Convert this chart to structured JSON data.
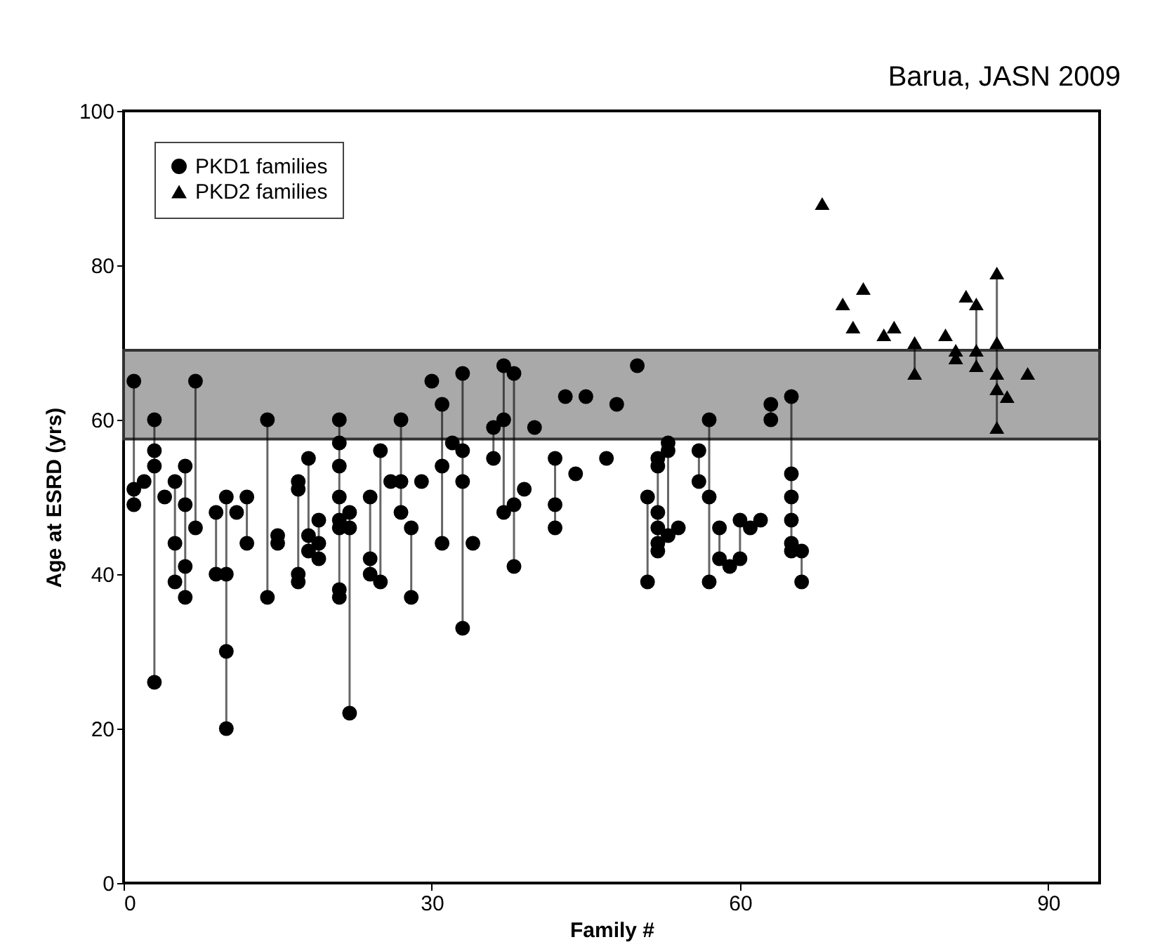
{
  "chart_data": {
    "type": "line",
    "xlabel": "Family #",
    "ylabel": "Age at ESRD (yrs)",
    "annotations": [
      "Barua, JASN 2009"
    ],
    "xlim": [
      0,
      95
    ],
    "xticks": [
      0,
      30,
      60,
      90
    ],
    "ylim": [
      0,
      100
    ],
    "yticks": [
      0,
      20,
      40,
      60,
      80,
      100
    ],
    "grid": false,
    "legend": "top left",
    "bands": [
      {
        "axis": "y",
        "from": 57.5,
        "to": 69,
        "color": "#a9a9a9"
      }
    ],
    "series": [
      {
        "name": "PKD1 families",
        "color": "#000000",
        "marker": "circle",
        "x": [
          1,
          1,
          1,
          null,
          2,
          null,
          3,
          3,
          3,
          3,
          null,
          4,
          null,
          5,
          5,
          5,
          null,
          6,
          6,
          6,
          6,
          null,
          7,
          7,
          null,
          9,
          9,
          null,
          10,
          10,
          10,
          10,
          null,
          11,
          null,
          12,
          12,
          null,
          14,
          14,
          null,
          15,
          15,
          null,
          17,
          17,
          17,
          17,
          null,
          18,
          18,
          18,
          null,
          19,
          19,
          19,
          null,
          21,
          21,
          21,
          21,
          21,
          21,
          21,
          21,
          null,
          22,
          22,
          22,
          null,
          24,
          24,
          24,
          null,
          25,
          25,
          null,
          26,
          null,
          27,
          27,
          27,
          null,
          28,
          28,
          null,
          29,
          null,
          30,
          null,
          31,
          31,
          31,
          null,
          32,
          null,
          33,
          33,
          33,
          33,
          null,
          34,
          null,
          36,
          36,
          null,
          37,
          37,
          37,
          null,
          38,
          38,
          38,
          null,
          39,
          null,
          40,
          null,
          42,
          42,
          42,
          null,
          43,
          null,
          44,
          null,
          45,
          null,
          47,
          null,
          48,
          null,
          50,
          null,
          51,
          51,
          null,
          52,
          52,
          52,
          52,
          52,
          52,
          null,
          53,
          53,
          53,
          null,
          54,
          null,
          56,
          56,
          null,
          57,
          57,
          57,
          null,
          58,
          58,
          null,
          59,
          null,
          60,
          60,
          null,
          61,
          null,
          62,
          null,
          63,
          63,
          null,
          65,
          65,
          65,
          65,
          65,
          65,
          null,
          66,
          66
        ],
        "values": [
          65,
          51,
          49,
          null,
          52,
          null,
          60,
          56,
          54,
          26,
          null,
          50,
          null,
          52,
          44,
          39,
          null,
          54,
          49,
          41,
          37,
          null,
          65,
          46,
          null,
          48,
          40,
          null,
          50,
          40,
          30,
          20,
          null,
          48,
          null,
          50,
          44,
          null,
          60,
          37,
          null,
          45,
          44,
          null,
          52,
          51,
          40,
          39,
          null,
          55,
          45,
          43,
          null,
          47,
          44,
          42,
          null,
          60,
          57,
          54,
          50,
          47,
          46,
          38,
          37,
          null,
          48,
          46,
          22,
          null,
          50,
          42,
          40,
          null,
          56,
          39,
          null,
          52,
          null,
          60,
          52,
          48,
          null,
          46,
          37,
          null,
          52,
          null,
          65,
          null,
          62,
          54,
          44,
          null,
          57,
          null,
          66,
          56,
          52,
          33,
          null,
          44,
          null,
          59,
          55,
          null,
          67,
          60,
          48,
          null,
          66,
          49,
          41,
          null,
          51,
          null,
          59,
          null,
          55,
          49,
          46,
          null,
          63,
          null,
          53,
          null,
          63,
          null,
          55,
          null,
          62,
          null,
          67,
          null,
          50,
          39,
          null,
          55,
          54,
          48,
          46,
          44,
          43,
          null,
          57,
          56,
          45,
          null,
          46,
          null,
          56,
          52,
          null,
          60,
          50,
          39,
          null,
          46,
          42,
          null,
          41,
          null,
          47,
          42,
          null,
          46,
          null,
          47,
          null,
          62,
          60,
          null,
          63,
          53,
          50,
          47,
          44,
          43,
          null,
          43,
          39
        ]
      },
      {
        "name": "PKD2 families",
        "color": "#000000",
        "marker": "triangle",
        "x": [
          68,
          null,
          70,
          null,
          71,
          null,
          72,
          null,
          74,
          null,
          75,
          null,
          77,
          77,
          null,
          80,
          null,
          81,
          81,
          null,
          82,
          null,
          83,
          83,
          83,
          null,
          85,
          85,
          85,
          85,
          85,
          null,
          86,
          null,
          88
        ],
        "values": [
          88,
          null,
          75,
          null,
          72,
          null,
          77,
          null,
          71,
          null,
          72,
          null,
          70,
          66,
          null,
          71,
          null,
          69,
          68,
          null,
          76,
          null,
          75,
          69,
          67,
          null,
          79,
          70,
          66,
          64,
          59,
          null,
          63,
          null,
          66
        ]
      }
    ]
  }
}
